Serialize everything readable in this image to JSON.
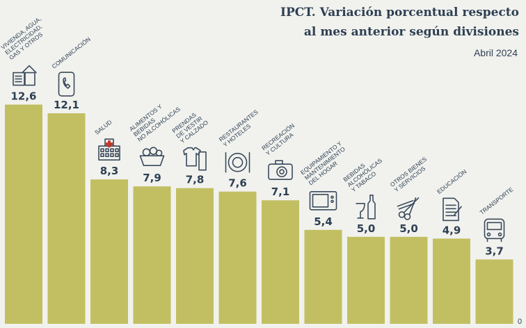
{
  "header": {
    "title_line1": "IPCT. Variación porcentual respecto",
    "title_line2": "al mes anterior según divisiones",
    "subtitle": "Abril 2024"
  },
  "colors": {
    "bar": "#c2bf62",
    "text": "#2e3f52",
    "background": "#f1f2ee",
    "icon": "#3a4a5c"
  },
  "chart_data": {
    "type": "bar",
    "title": "IPCT. Variación porcentual respecto al mes anterior según divisiones",
    "subtitle": "Abril 2024",
    "categories": [
      "VIVIENDA, AGUA, ELECTRICIDAD, GAS Y OTROS",
      "COMUNICACIÓN",
      "SALUD",
      "ALIMENTOS Y BEBIDAS NO ALCOHÓLICAS",
      "PRENDAS DE VESTIR Y CALZADO",
      "RESTAURANTES Y HOTELES",
      "RECREACIÓN Y CULTURA",
      "EQUIPAMIENTO Y MANTENIMIENTO DEL HOGAR",
      "BEBIDAS ALCOHÓLICAS Y TABACO",
      "OTROS BIENES Y SERVICIOS",
      "EDUCACIÓN",
      "TRANSPORTE"
    ],
    "category_lines": [
      [
        "VIVIENDA, AGUA,",
        "ELECTRICIDAD,",
        "GAS Y OTROS"
      ],
      [
        "COMUNICACIÓN"
      ],
      [
        "SALUD"
      ],
      [
        "ALIMENTOS Y",
        "BEBIDAS",
        "NO ALCOHÓLICAS"
      ],
      [
        "PRENDAS",
        "DE VESTIR",
        "Y CALZADO"
      ],
      [
        "RESTAURANTES",
        "Y HOTELES"
      ],
      [
        "RECREACIÓN",
        "Y CULTURA"
      ],
      [
        "EQUIPAMIENTO Y",
        "MANTENIMIENTO",
        "DEL HOGAR"
      ],
      [
        "BEBIDAS",
        "ALCOHÓLICAS",
        "Y TABACO"
      ],
      [
        "OTROS BIENES",
        "Y SERVICIOS"
      ],
      [
        "EDUCACIÓN"
      ],
      [
        "TRANSPORTE"
      ]
    ],
    "icons": [
      "house-icon",
      "phone-icon",
      "hospital-icon",
      "food-basket-icon",
      "clothing-icon",
      "plate-cutlery-icon",
      "camera-icon",
      "microwave-icon",
      "bottle-glass-icon",
      "scissors-comb-icon",
      "document-icon",
      "bus-icon"
    ],
    "values": [
      12.6,
      12.1,
      8.3,
      7.9,
      7.8,
      7.6,
      7.1,
      5.4,
      5.0,
      5.0,
      4.9,
      3.7
    ],
    "value_labels": [
      "12,6",
      "12,1",
      "8,3",
      "7,9",
      "7,8",
      "7,6",
      "7,1",
      "5,4",
      "5,0",
      "5,0",
      "4,9",
      "3,7"
    ],
    "baseline_label": "0",
    "ylim": [
      0,
      13.1
    ],
    "grid": false,
    "legend": "none"
  }
}
